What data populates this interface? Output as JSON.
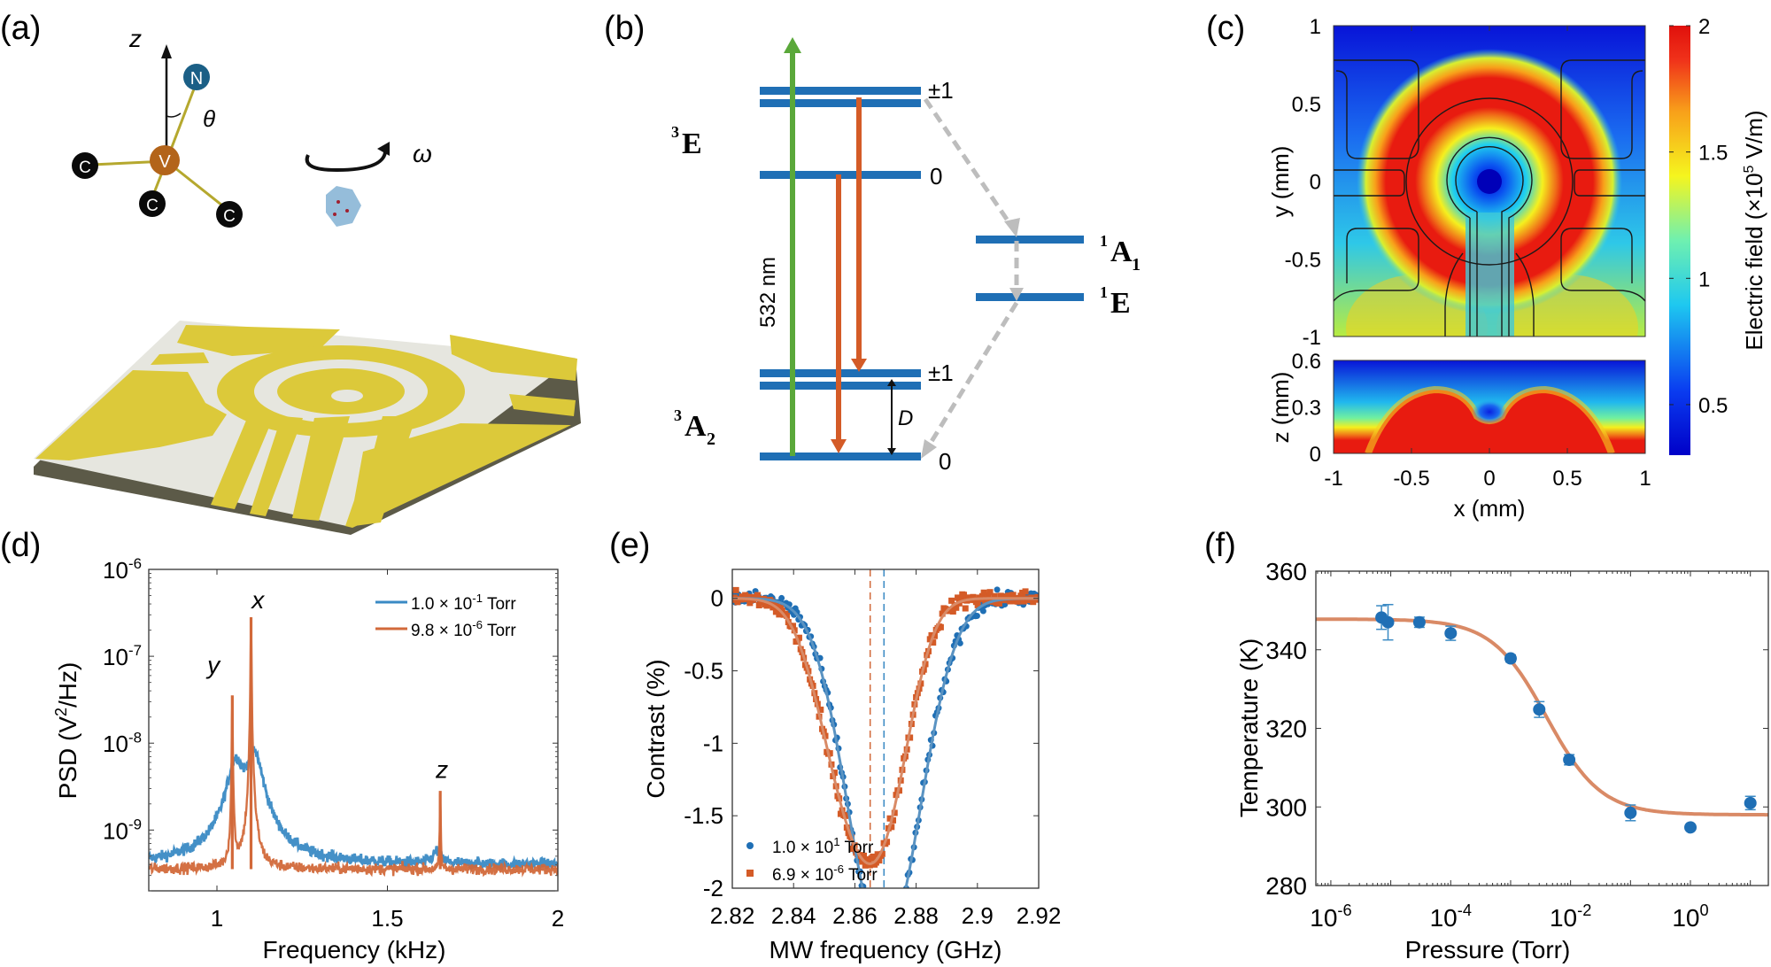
{
  "panel_labels": {
    "a": "(a)",
    "b": "(b)",
    "c": "(c)",
    "d": "(d)",
    "e": "(e)",
    "f": "(f)"
  },
  "panel_a": {
    "axis_label": "z",
    "angle_label": "θ",
    "rotation_label": "ω",
    "atoms": {
      "nitrogen": "N",
      "vacancy": "V",
      "carbon": "C"
    },
    "colors": {
      "gold": "#dcc93a",
      "substrate": "#e9e9e4",
      "nitrogen": "#1b5f86",
      "vacancy": "#b3641a"
    }
  },
  "panel_b": {
    "states": {
      "excited_triplet": {
        "main": "E",
        "sup": "3",
        "sub": ""
      },
      "ground_triplet": {
        "main": "A",
        "sup": "3",
        "sub": "2"
      },
      "singlet_a1": {
        "main": "A",
        "sup": "1",
        "sub": "1"
      },
      "singlet_e": {
        "main": "E",
        "sup": "1",
        "sub": ""
      }
    },
    "sublevel_labels": {
      "pm1_upper": "±1",
      "zero_upper": "0",
      "pm1_lower": "±1",
      "zero_lower": "0"
    },
    "laser_label": "532 nm",
    "splitting_label": "D",
    "colors": {
      "level": "#1f6fb5",
      "laser": "#5aa83a",
      "emission": "#d45b27",
      "isc": "#bdbdbd"
    }
  },
  "chart_data": [
    {
      "id": "c",
      "type": "heatmap",
      "title": "",
      "xlabel": "x (mm)",
      "ylabel_top": "y (mm)",
      "ylabel_bottom": "z (mm)",
      "xlim": [
        -1,
        1
      ],
      "ylim_top": [
        -1,
        1
      ],
      "ylim_bottom": [
        0,
        0.6
      ],
      "xticks": [
        "-1",
        "-0.5",
        "0",
        "0.5",
        "1"
      ],
      "yticks_top": [
        "1",
        "0.5",
        "0",
        "-0.5",
        "-1"
      ],
      "yticks_bottom": [
        "0.6",
        "0.3",
        "0"
      ],
      "colorbar": {
        "label": "Electric field (×10⁵ V/m)",
        "label_main": "Electric field (×10",
        "label_sup": "5",
        "label_end": " V/m)",
        "range": [
          0.3,
          2
        ],
        "ticks": [
          "2",
          "1.5",
          "1",
          "0.5"
        ],
        "colormap": "jet"
      }
    },
    {
      "id": "d",
      "type": "line",
      "title": "",
      "xlabel": "Frequency (kHz)",
      "ylabel": "PSD (V²/Hz)",
      "ylabel_main": "PSD (V",
      "ylabel_sup": "2",
      "ylabel_end": "/Hz)",
      "xlim": [
        0.8,
        2
      ],
      "ylim_log10": [
        -9.7,
        -6
      ],
      "yscale": "log",
      "xticks": [
        "1",
        "1.5",
        "2"
      ],
      "yticks": [
        {
          "base": "10",
          "exp": "-6"
        },
        {
          "base": "10",
          "exp": "-7"
        },
        {
          "base": "10",
          "exp": "-8"
        },
        {
          "base": "10",
          "exp": "-9"
        }
      ],
      "annotations": [
        {
          "text": "x",
          "x": 1.12,
          "y_log10": -6.45
        },
        {
          "text": "y",
          "x": 0.99,
          "y_log10": -7.2
        },
        {
          "text": "z",
          "x": 1.66,
          "y_log10": -8.4
        }
      ],
      "legend_position": "top-right",
      "series": [
        {
          "name": "1.0 × 10⁻¹ Torr",
          "legend_main": "1.0 × 10",
          "legend_sup": "-1",
          "legend_end": " Torr",
          "color": "#3a8ac4",
          "baseline_log10": -9.4,
          "peaks": [
            {
              "x": 1.055,
              "height_log10": -8.23,
              "width": 0.022
            },
            {
              "x": 1.11,
              "height_log10": -8.13,
              "width": 0.022
            },
            {
              "x": 1.645,
              "height_log10": -9.25,
              "width": 0.012
            }
          ]
        },
        {
          "name": "9.8 × 10⁻⁶ Torr",
          "legend_main": "9.8 × 10",
          "legend_sup": "-6",
          "legend_end": " Torr",
          "color": "#d2693a",
          "baseline_log10": -9.45,
          "peaks": [
            {
              "x": 1.045,
              "height_log10": -7.45,
              "width": 0.002
            },
            {
              "x": 1.1,
              "height_log10": -6.55,
              "width": 0.002
            },
            {
              "x": 1.655,
              "height_log10": -8.55,
              "width": 0.002
            }
          ]
        }
      ]
    },
    {
      "id": "e",
      "type": "scatter",
      "title": "",
      "xlabel": "MW frequency (GHz)",
      "ylabel": "Contrast (%)",
      "xlim": [
        2.82,
        2.92
      ],
      "ylim": [
        -2,
        0.2
      ],
      "xticks": [
        "2.82",
        "2.84",
        "2.86",
        "2.88",
        "2.9",
        "2.92"
      ],
      "yticks": [
        "0",
        "-0.5",
        "-1",
        "-1.5",
        "-2"
      ],
      "legend_position": "bottom-left",
      "vlines": [
        {
          "x": 2.865,
          "color": "#d2693a"
        },
        {
          "x": 2.8695,
          "color": "#3a8ac4"
        }
      ],
      "series": [
        {
          "name": "1.0 × 10¹ Torr",
          "legend_main": "1.0 × 10",
          "legend_sup": "1",
          "legend_end": " Torr",
          "marker": "circle",
          "color": "#1f6fb5",
          "fit_color": "#5a93c2",
          "fit": {
            "centers": [
              2.8648,
              2.8745
            ],
            "amplitudes": [
              1.42,
              1.38
            ],
            "widths": [
              0.0105,
              0.0105
            ]
          }
        },
        {
          "name": "6.9 × 10⁻⁶ Torr",
          "legend_main": "6.9 × 10",
          "legend_sup": "-6",
          "legend_end": " Torr",
          "marker": "square",
          "color": "#d45b27",
          "fit_color": "#d98a66",
          "fit": {
            "centers": [
              2.8575,
              2.8705
            ],
            "amplitudes": [
              1.27,
              1.23
            ],
            "widths": [
              0.0095,
              0.0085
            ]
          }
        }
      ]
    },
    {
      "id": "f",
      "type": "scatter",
      "title": "",
      "xlabel": "Pressure (Torr)",
      "ylabel": "Temperature (K)",
      "xscale": "log",
      "xlim_log10": [
        -6.25,
        1.3
      ],
      "ylim": [
        280,
        360
      ],
      "xticks": [
        {
          "base": "10",
          "exp": "-6"
        },
        {
          "base": "10",
          "exp": "-4"
        },
        {
          "base": "10",
          "exp": "-2"
        },
        {
          "base": "10",
          "exp": "0"
        }
      ],
      "yticks": [
        "360",
        "340",
        "320",
        "300",
        "280"
      ],
      "points": [
        {
          "x": 7e-06,
          "y": 348.2,
          "err": 3.0
        },
        {
          "x": 9e-06,
          "y": 347.0,
          "err": 4.5
        },
        {
          "x": 3e-05,
          "y": 347.0,
          "err": 1.3
        },
        {
          "x": 0.0001,
          "y": 344.2,
          "err": 1.8
        },
        {
          "x": 0.001,
          "y": 337.8,
          "err": 0.9
        },
        {
          "x": 0.003,
          "y": 324.8,
          "err": 2.0
        },
        {
          "x": 0.0095,
          "y": 312.0,
          "err": 1.3
        },
        {
          "x": 0.1,
          "y": 298.5,
          "err": 2.0
        },
        {
          "x": 1.0,
          "y": 294.8,
          "err": 0
        },
        {
          "x": 10,
          "y": 301.0,
          "err": 1.7
        }
      ],
      "fit": {
        "type": "sigmoid",
        "upper": 347.8,
        "lower": 298.0,
        "center_log10": -2.4,
        "slope": 2.2
      },
      "colors": {
        "points": "#1f6fb5",
        "errorbars": "#3a8ac4",
        "fit": "#d98a66"
      }
    }
  ]
}
